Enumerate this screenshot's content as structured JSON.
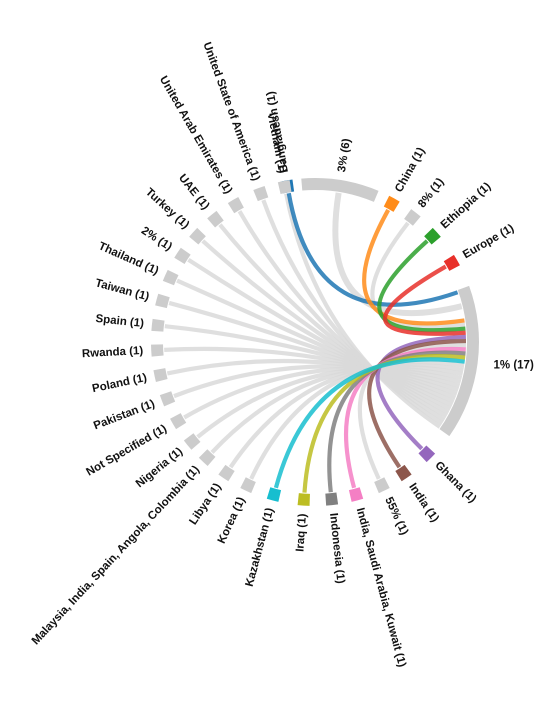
{
  "chart_data": {
    "type": "chord",
    "title": "",
    "hub": "1% (17)",
    "targets": [
      {
        "label": "Bangladesh (1)",
        "value": 1,
        "color": "#1f77b4",
        "mid": -10
      },
      {
        "label": "3% (6)",
        "value": 6,
        "color": "#cccccc",
        "mid": 9
      },
      {
        "label": "China (1)",
        "value": 1,
        "color": "#ff8c1a",
        "mid": 29
      },
      {
        "label": "8% (1)",
        "value": 1,
        "color": "#cccccc",
        "mid": 38
      },
      {
        "label": "Ethiopia (1)",
        "value": 1,
        "color": "#2ca02c",
        "mid": 48
      },
      {
        "label": "Europe (1)",
        "value": 1,
        "color": "#e8302a",
        "mid": 60
      },
      {
        "label": "Ghana (1)",
        "value": 1,
        "color": "#9467bd",
        "mid": 135
      },
      {
        "label": "India (1)",
        "value": 1,
        "color": "#8c564b",
        "mid": 146
      },
      {
        "label": "55% (1)",
        "value": 1,
        "color": "#cccccc",
        "mid": 155
      },
      {
        "label": "India, Saudi Arabia, Kuwait (1)",
        "value": 1,
        "color": "#f47fc4",
        "mid": 165
      },
      {
        "label": "Indonesia (1)",
        "value": 1,
        "color": "#808080",
        "mid": 174
      },
      {
        "label": "Iraq (1)",
        "value": 1,
        "color": "#bcbd22",
        "mid": 184
      },
      {
        "label": "Kazakhstan (1)",
        "value": 1,
        "color": "#17becf",
        "mid": 195
      },
      {
        "label": "Korea (1)",
        "value": 1,
        "color": "#cccccc",
        "mid": 205
      },
      {
        "label": "Libya (1)",
        "value": 1,
        "color": "#cccccc",
        "mid": 214
      },
      {
        "label": "Malaysia, India, Spain, Angola, Colombia (1)",
        "value": 1,
        "color": "#cccccc",
        "mid": 223
      },
      {
        "label": "Nigeria (1)",
        "value": 1,
        "color": "#cccccc",
        "mid": 231
      },
      {
        "label": "Not Specified (1)",
        "value": 1,
        "color": "#cccccc",
        "mid": 240
      },
      {
        "label": "Pakistan (1)",
        "value": 1,
        "color": "#cccccc",
        "mid": 249
      },
      {
        "label": "Poland (1)",
        "value": 1,
        "color": "#cccccc",
        "mid": 258
      },
      {
        "label": "Rwanda (1)",
        "value": 1,
        "color": "#cccccc",
        "mid": 267
      },
      {
        "label": "Spain (1)",
        "value": 1,
        "color": "#cccccc",
        "mid": 276
      },
      {
        "label": "Taiwan (1)",
        "value": 1,
        "color": "#cccccc",
        "mid": 285
      },
      {
        "label": "Thailand (1)",
        "value": 1,
        "color": "#cccccc",
        "mid": 294
      },
      {
        "label": "2% (1)",
        "value": 1,
        "color": "#cccccc",
        "mid": 303
      },
      {
        "label": "Turkey (1)",
        "value": 1,
        "color": "#cccccc",
        "mid": 312
      },
      {
        "label": "UAE (1)",
        "value": 1,
        "color": "#cccccc",
        "mid": 321
      },
      {
        "label": "United Arab Emirates (1)",
        "value": 1,
        "color": "#cccccc",
        "mid": 330
      },
      {
        "label": "United State of America (1)",
        "value": 1,
        "color": "#cccccc",
        "mid": 340
      },
      {
        "label": "Vietnam (1)",
        "value": 1,
        "color": "#cccccc",
        "mid": 349
      }
    ],
    "hub_arc": {
      "start": 70,
      "end": 125,
      "color": "#cccccc"
    }
  }
}
